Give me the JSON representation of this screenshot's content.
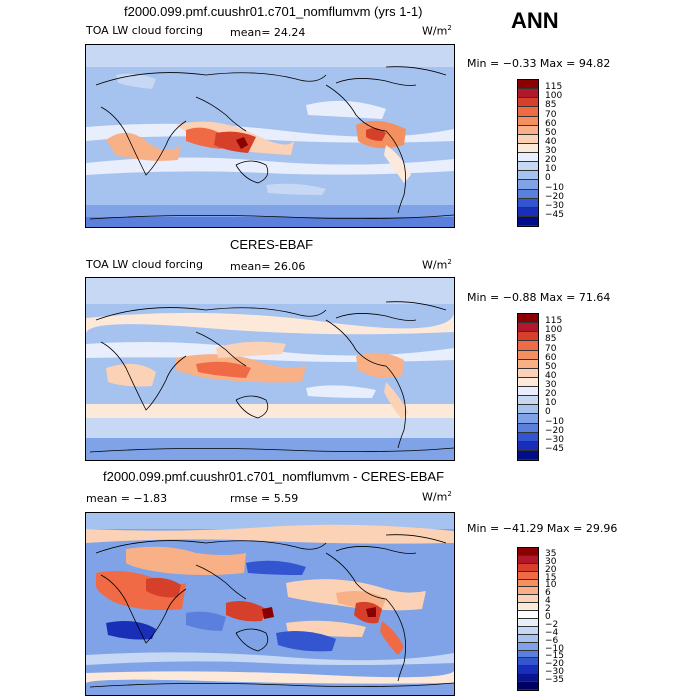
{
  "annual_label": "ANN",
  "panels": [
    {
      "title": "f2000.099.pmf.cuushr01.c701_nomflumvm (yrs 1-1)",
      "left_text": "TOA LW cloud forcing",
      "mid_text": "mean=  24.24",
      "units": "W/m",
      "units_exp": "2",
      "minmax": "Min =  −0.33 Max =  94.82",
      "legend_labels": [
        "115",
        "100",
        "85",
        "70",
        "60",
        "50",
        "40",
        "30",
        "20",
        "10",
        "0",
        "−10",
        "−20",
        "−30",
        "−45"
      ],
      "legend_colors": [
        "#8b0000",
        "#b2182b",
        "#d6402a",
        "#ef6a45",
        "#f4905f",
        "#f8b187",
        "#fbd2b5",
        "#fde9da",
        "#e8eefc",
        "#c7d8f5",
        "#a6c2ef",
        "#7fa3e6",
        "#5a7fdc",
        "#3355cf",
        "#1a2fb8",
        "#000e8a"
      ]
    },
    {
      "title": "CERES-EBAF",
      "left_text": "TOA LW cloud forcing",
      "mid_text": "mean=  26.06",
      "units": "W/m",
      "units_exp": "2",
      "minmax": "Min =  −0.88 Max =  71.64",
      "legend_labels": [
        "115",
        "100",
        "85",
        "70",
        "60",
        "50",
        "40",
        "30",
        "20",
        "10",
        "0",
        "−10",
        "−20",
        "−30",
        "−45"
      ],
      "legend_colors": [
        "#8b0000",
        "#b2182b",
        "#d6402a",
        "#ef6a45",
        "#f4905f",
        "#f8b187",
        "#fbd2b5",
        "#fde9da",
        "#e8eefc",
        "#c7d8f5",
        "#a6c2ef",
        "#7fa3e6",
        "#5a7fdc",
        "#3355cf",
        "#1a2fb8",
        "#000e8a"
      ]
    },
    {
      "title": "f2000.099.pmf.cuushr01.c701_nomflumvm - CERES-EBAF",
      "left_text": "mean =  −1.83",
      "mid_text": "rmse =   5.59",
      "units": "W/m",
      "units_exp": "2",
      "minmax": "Min = −41.29 Max =  29.96",
      "legend_labels": [
        "35",
        "30",
        "20",
        "15",
        "10",
        "6",
        "4",
        "2",
        "0",
        "−2",
        "−4",
        "−6",
        "−10",
        "−15",
        "−20",
        "−30",
        "−35"
      ],
      "legend_colors": [
        "#8b0000",
        "#b2182b",
        "#d6402a",
        "#ef6a45",
        "#f4905f",
        "#f8b187",
        "#fbd2b5",
        "#fde9da",
        "#ffffff",
        "#e8eefc",
        "#c7d8f5",
        "#a6c2ef",
        "#7fa3e6",
        "#5a7fdc",
        "#3355cf",
        "#1a2fb8",
        "#08158f",
        "#000060"
      ]
    }
  ]
}
